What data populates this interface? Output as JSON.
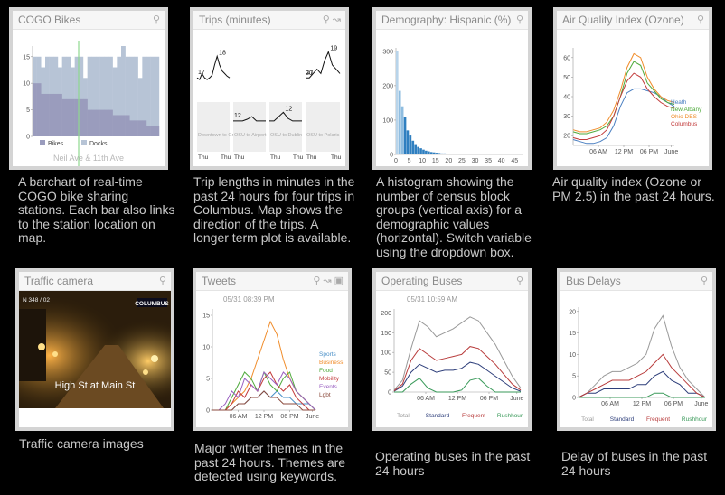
{
  "panels": {
    "cogo": {
      "title": "COGO Bikes",
      "description": "A barchart of real-time COGO bike sharing stations. Each bar also links to the station location on map.",
      "station_label": "Neil Ave & 11th Ave",
      "chart_data": {
        "type": "bar",
        "yticks": [
          "0",
          "5",
          "10",
          "15"
        ],
        "ylim": [
          0,
          17
        ],
        "series": [
          {
            "name": "Bikes",
            "color": "#9a9cbd",
            "values": [
              10,
              10,
              8,
              8,
              8,
              8,
              8,
              7,
              7,
              7,
              7,
              7,
              7,
              5,
              5,
              5,
              5,
              5,
              5,
              4,
              4,
              4,
              4,
              3,
              3,
              3,
              3,
              2,
              2,
              2
            ]
          },
          {
            "name": "Docks",
            "color": "#b7c4d6",
            "values": [
              15,
              15,
              13,
              15,
              15,
              15,
              13,
              15,
              15,
              13,
              15,
              15,
              11,
              15,
              15,
              15,
              15,
              15,
              15,
              13,
              15,
              17,
              15,
              15,
              15,
              11,
              15,
              15,
              15,
              15
            ]
          }
        ],
        "legend": [
          "Bikes",
          "Docks"
        ],
        "highlight_color": "#8fd98f"
      }
    },
    "trips": {
      "title": "Trips (minutes)",
      "description": "Trip lengths in minutes in the past 24 hours for four trips in Columbus. Map shows the direction of the trips. A longer term plot is available.",
      "chart_data": {
        "type": "line",
        "panels": [
          {
            "name": "Downtown to Grove City",
            "start_label": "17",
            "peak_label": "18",
            "x_labels": [
              "Thu",
              "Thu"
            ],
            "values": [
              17,
              16.8,
              17.5,
              17,
              16.8,
              17,
              17.3,
              18.5,
              19.5,
              18.5,
              17.8,
              17.5,
              17.2,
              17
            ]
          },
          {
            "name": "OSU to Airport",
            "start_label": "12",
            "peak_label": "",
            "x_labels": [
              "Thu",
              ""
            ],
            "values": [
              12,
              12,
              12,
              12.2,
              12.5,
              12,
              12,
              12
            ]
          },
          {
            "name": "OSU to Dublin",
            "start_label": "",
            "peak_label": "12",
            "x_labels": [
              "Thu",
              "Thu"
            ],
            "values": [
              12,
              12,
              12.5,
              13,
              12.3,
              12,
              12,
              12
            ]
          },
          {
            "name": "OSU to Polaris",
            "start_label": "17",
            "peak_label": "19",
            "x_labels": [
              "Thu",
              "Thu"
            ],
            "values": [
              17,
              17,
              17.5,
              18,
              17.5,
              19,
              20,
              18.5,
              18,
              17.5
            ]
          }
        ],
        "mid_labels": [
          "20"
        ]
      }
    },
    "demography": {
      "title": "Demography: Hispanic (%)",
      "description": "A histogram showing the number of census block groups (vertical axis) for a demographic values (horizontal). Switch variable using the dropdown box.",
      "chart_data": {
        "type": "bar",
        "x": [
          0.5,
          1.5,
          2.5,
          3.5,
          4.5,
          5.5,
          6.5,
          7.5,
          8.5,
          9.5,
          10.5,
          11.5,
          12.5,
          13.5,
          14.5,
          15.5,
          16.5,
          17.5,
          18.5,
          19.5,
          20.5,
          21.5,
          22.5,
          23.5,
          24.5,
          25.5,
          26.5,
          27.5,
          28.5,
          29.5,
          30.5,
          31.5
        ],
        "values": [
          300,
          185,
          140,
          110,
          70,
          55,
          40,
          30,
          22,
          18,
          14,
          11,
          9,
          7,
          6,
          5,
          4,
          3,
          3,
          2,
          2,
          2,
          1,
          1,
          1,
          1,
          1,
          1,
          0,
          1,
          0,
          1
        ],
        "xticks": [
          "0",
          "5",
          "10",
          "15",
          "20",
          "25",
          "30",
          "35",
          "40",
          "45"
        ],
        "yticks": [
          "0",
          "100",
          "200",
          "300"
        ],
        "xlim": [
          0,
          48
        ],
        "ylim": [
          0,
          310
        ]
      }
    },
    "aqi": {
      "title": "Air Quality Index (Ozone)",
      "description": "Air quality index (Ozone or PM 2.5) in the past 24 hours.",
      "chart_data": {
        "type": "line",
        "yticks": [
          "20",
          "30",
          "40",
          "50",
          "60"
        ],
        "xticks": [
          "06 AM",
          "12 PM",
          "06 PM",
          "June"
        ],
        "ylim": [
          15,
          65
        ],
        "series": [
          {
            "name": "Heath",
            "color": "#4a7fc1",
            "values": [
              18,
              17,
              16,
              16,
              17,
              19,
              25,
              35,
              42,
              44,
              44,
              43,
              42,
              40,
              37,
              35
            ]
          },
          {
            "name": "New Albany",
            "color": "#4faa3c",
            "values": [
              22,
              21,
              21,
              22,
              23,
              25,
              30,
              40,
              52,
              58,
              56,
              47,
              43,
              39,
              37,
              36
            ]
          },
          {
            "name": "Ohio DES",
            "color": "#f08c2a",
            "values": [
              23,
              22,
              22,
              23,
              24,
              27,
              33,
              43,
              55,
              62,
              60,
              50,
              44,
              40,
              38,
              37
            ]
          },
          {
            "name": "Columbus",
            "color": "#c23b3b",
            "values": [
              19,
              18,
              18,
              19,
              20,
              23,
              30,
              40,
              48,
              52,
              50,
              44,
              40,
              37,
              35,
              34
            ]
          }
        ]
      }
    },
    "traffic": {
      "title": "Traffic camera",
      "description": "Traffic camera images",
      "overlay_text": "High St at Main St",
      "logo_text": "COLUMBUS",
      "stamp_text": "N  348 / 02"
    },
    "tweets": {
      "title": "Tweets",
      "description": "Major twitter themes in the past 24 hours. Themes are detected using keywords.",
      "timestamp": "05/31 08:39 PM",
      "chart_data": {
        "type": "line",
        "yticks": [
          "0",
          "5",
          "10",
          "15"
        ],
        "xticks": [
          "06 AM",
          "12 PM",
          "06 PM",
          "June"
        ],
        "ylim": [
          0,
          16
        ],
        "series": [
          {
            "name": "Sports",
            "color": "#4a90c8",
            "values": [
              0,
              0,
              0,
              0,
              1,
              1,
              2,
              2,
              3,
              2,
              3,
              2,
              2,
              1,
              1,
              1,
              0
            ]
          },
          {
            "name": "Business",
            "color": "#f08c2a",
            "values": [
              0,
              0,
              0,
              1,
              2,
              3,
              5,
              8,
              11,
              14,
              12,
              8,
              5,
              3,
              2,
              1,
              0
            ]
          },
          {
            "name": "Food",
            "color": "#4faa3c",
            "values": [
              0,
              0,
              0,
              2,
              4,
              6,
              5,
              3,
              6,
              4,
              3,
              5,
              6,
              3,
              2,
              1,
              0
            ]
          },
          {
            "name": "Mobility",
            "color": "#c23b3b",
            "values": [
              0,
              0,
              0,
              1,
              3,
              2,
              4,
              3,
              5,
              6,
              4,
              3,
              4,
              2,
              1,
              0,
              0
            ]
          },
          {
            "name": "Events",
            "color": "#9a5fc1",
            "values": [
              0,
              0,
              1,
              3,
              2,
              5,
              4,
              3,
              6,
              5,
              4,
              6,
              5,
              3,
              2,
              1,
              0
            ]
          },
          {
            "name": "Lgbt",
            "color": "#8b4a3c",
            "values": [
              0,
              0,
              0,
              0,
              1,
              1,
              2,
              2,
              3,
              2,
              2,
              1,
              1,
              1,
              0,
              0,
              0
            ]
          }
        ]
      }
    },
    "buses": {
      "title": "Operating Buses",
      "description": "Operating buses in the past 24 hours",
      "timestamp": "05/31 10:59 AM",
      "chart_data": {
        "type": "line",
        "yticks": [
          "0",
          "50",
          "100",
          "150",
          "200"
        ],
        "xticks": [
          "06 AM",
          "12 PM",
          "06 PM",
          "June"
        ],
        "ylim": [
          0,
          210
        ],
        "series": [
          {
            "name": "Total",
            "color": "#999999",
            "values": [
              5,
              30,
              110,
              180,
              165,
              140,
              150,
              160,
              175,
              190,
              180,
              150,
              120,
              80,
              40,
              10
            ]
          },
          {
            "name": "Standard",
            "color": "#2d3e7a",
            "values": [
              2,
              15,
              50,
              70,
              60,
              50,
              55,
              55,
              60,
              75,
              70,
              55,
              40,
              25,
              10,
              2
            ]
          },
          {
            "name": "Frequent",
            "color": "#b83c3c",
            "values": [
              3,
              20,
              80,
              110,
              95,
              80,
              85,
              90,
              95,
              115,
              110,
              90,
              70,
              45,
              20,
              5
            ]
          },
          {
            "name": "Rushhour",
            "color": "#3a9a5a",
            "values": [
              0,
              0,
              20,
              35,
              10,
              0,
              0,
              0,
              5,
              30,
              35,
              15,
              0,
              0,
              0,
              0
            ]
          }
        ]
      }
    },
    "delays": {
      "title": "Bus Delays",
      "description": "Delay of buses in the past 24 hours",
      "chart_data": {
        "type": "line",
        "yticks": [
          "0",
          "5",
          "10",
          "15",
          "20"
        ],
        "xticks": [
          "06 AM",
          "12 PM",
          "06 PM",
          "June"
        ],
        "ylim": [
          0,
          21
        ],
        "series": [
          {
            "name": "Total",
            "color": "#999999",
            "values": [
              0,
              1,
              3,
              5,
              6,
              6,
              7,
              8,
              10,
              16,
              19,
              12,
              7,
              4,
              2,
              0
            ]
          },
          {
            "name": "Standard",
            "color": "#2d3e7a",
            "values": [
              0,
              1,
              1,
              2,
              2,
              2,
              2,
              3,
              3,
              5,
              6,
              4,
              3,
              1,
              1,
              0
            ]
          },
          {
            "name": "Frequent",
            "color": "#b83c3c",
            "values": [
              0,
              1,
              2,
              3,
              4,
              4,
              4,
              5,
              6,
              8,
              10,
              7,
              5,
              3,
              1,
              0
            ]
          },
          {
            "name": "Rushhour",
            "color": "#3a9a5a",
            "values": [
              0,
              0,
              0,
              0,
              0,
              0,
              0,
              0,
              0,
              1,
              1,
              0,
              0,
              0,
              0,
              0
            ]
          }
        ]
      }
    }
  }
}
